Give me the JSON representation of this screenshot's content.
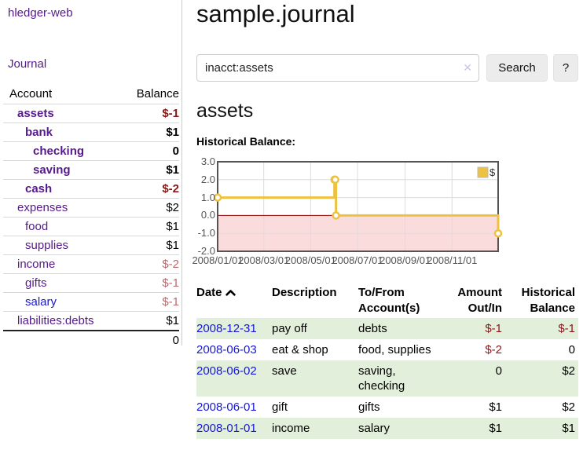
{
  "app": {
    "title": "hledger-web"
  },
  "colors": {
    "purple": "#551a8b",
    "blue": "#1616dd",
    "neg": "#8b1616",
    "negmuted": "#b56a6e",
    "rowgreen": "#e2efda"
  },
  "sidebar": {
    "nav_journal": "Journal",
    "accounts_table": {
      "headers": {
        "account": "Account",
        "balance": "Balance"
      },
      "rows": [
        {
          "name": "assets",
          "indent": 1,
          "bold": true,
          "balance": "$-1",
          "balance_style": "neg-strong"
        },
        {
          "name": "bank",
          "indent": 2,
          "bold": true,
          "balance": "$1",
          "balance_style": "pos"
        },
        {
          "name": "checking",
          "indent": 3,
          "bold": true,
          "balance": "0",
          "balance_style": "pos"
        },
        {
          "name": "saving",
          "indent": 3,
          "bold": true,
          "balance": "$1",
          "balance_style": "pos"
        },
        {
          "name": "cash",
          "indent": 2,
          "bold": true,
          "balance": "$-2",
          "balance_style": "neg-strong"
        },
        {
          "name": "expenses",
          "indent": 1,
          "bold": false,
          "balance": "$2",
          "balance_style": "pos"
        },
        {
          "name": "food",
          "indent": 2,
          "bold": false,
          "balance": "$1",
          "balance_style": "pos"
        },
        {
          "name": "supplies",
          "indent": 2,
          "bold": false,
          "balance": "$1",
          "balance_style": "pos"
        },
        {
          "name": "income",
          "indent": 1,
          "bold": false,
          "balance": "$-2",
          "balance_style": "neg-muted"
        },
        {
          "name": "gifts",
          "indent": 2,
          "bold": false,
          "balance": "$-1",
          "balance_style": "neg-muted"
        },
        {
          "name": "salary",
          "indent": 2,
          "bold": false,
          "balance": "$-1",
          "balance_style": "neg-muted",
          "link_color": "blue"
        },
        {
          "name": "liabilities:debts",
          "indent": 1,
          "bold": false,
          "balance": "$1",
          "balance_style": "pos"
        }
      ],
      "total": "0"
    }
  },
  "header": {
    "title": "sample.journal"
  },
  "search": {
    "value": "inacct:assets",
    "clear_icon": "✕",
    "button_label": "Search",
    "help_label": "?"
  },
  "account_page": {
    "heading": "assets",
    "chart_label": "Historical Balance:"
  },
  "chart_data": {
    "type": "line",
    "title": "Historical Balance",
    "step": true,
    "series": [
      {
        "name": "$",
        "color": "#edc240",
        "points": [
          [
            "2008-01-01",
            1
          ],
          [
            "2008-06-01",
            2
          ],
          [
            "2008-06-02",
            2
          ],
          [
            "2008-06-03",
            0
          ],
          [
            "2008-12-31",
            -1
          ]
        ]
      }
    ],
    "x_ticks": [
      "2008/01/01",
      "2008/03/01",
      "2008/05/01",
      "2008/07/01",
      "2008/09/01",
      "2008/11/01"
    ],
    "y_ticks": [
      3.0,
      2.0,
      1.0,
      0.0,
      -1.0,
      -2.0
    ],
    "xlim": [
      "2008-01-01",
      "2008-12-31"
    ],
    "ylim": [
      -2,
      3
    ],
    "grid": true,
    "grid_color": "#dcdcdc",
    "border_color": "#545454",
    "axis_text_color": "#545454",
    "negative_region_color": "#fbdcdc",
    "zero_line_color": "#8b0000",
    "legend": {
      "label": "$",
      "position": "top-right"
    }
  },
  "register_table": {
    "headers": {
      "date": "Date",
      "description": "Description",
      "tofrom_line1": "To/From",
      "tofrom_line2": "Account(s)",
      "amount_line1": "Amount",
      "amount_line2": "Out/In",
      "balance_line1": "Historical",
      "balance_line2": "Balance"
    },
    "rows": [
      {
        "date": "2008-12-31",
        "description": "pay off",
        "accounts": "debts",
        "amount": "$-1",
        "amount_neg": true,
        "balance": "$-1",
        "balance_neg": true
      },
      {
        "date": "2008-06-03",
        "description": "eat & shop",
        "accounts": "food, supplies",
        "amount": "$-2",
        "amount_neg": true,
        "balance": "0",
        "balance_neg": false
      },
      {
        "date": "2008-06-02",
        "description": "save",
        "accounts": "saving, checking",
        "amount": "0",
        "amount_neg": false,
        "balance": "$2",
        "balance_neg": false
      },
      {
        "date": "2008-06-01",
        "description": "gift",
        "accounts": "gifts",
        "amount": "$1",
        "amount_neg": false,
        "balance": "$2",
        "balance_neg": false
      },
      {
        "date": "2008-01-01",
        "description": "income",
        "accounts": "salary",
        "amount": "$1",
        "amount_neg": false,
        "balance": "$1",
        "balance_neg": false
      }
    ]
  }
}
